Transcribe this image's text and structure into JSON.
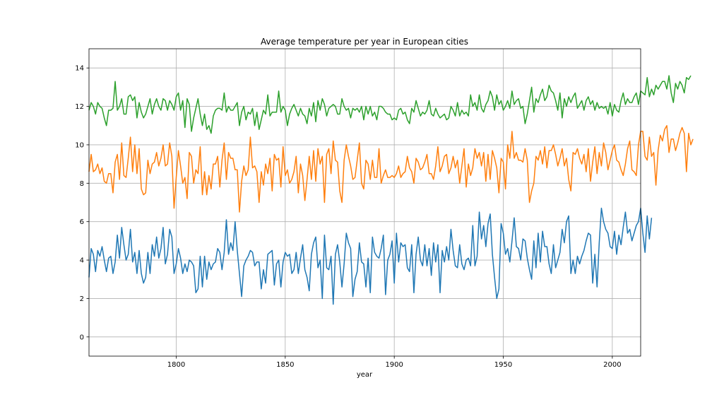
{
  "chart_data": {
    "type": "line",
    "title": "Average temperature per year in European cities",
    "xlabel": "year",
    "ylabel": "",
    "xlim": [
      1760,
      2013
    ],
    "ylim": [
      -1,
      15
    ],
    "xticks": [
      1800,
      1850,
      1900,
      1950,
      2000
    ],
    "yticks": [
      0,
      2,
      4,
      6,
      8,
      10,
      12,
      14
    ],
    "grid": true,
    "x_start": 1760,
    "series": [
      {
        "color": "#1f77b4",
        "values": [
          3.1,
          4.6,
          4.3,
          3.4,
          4.5,
          4.2,
          4.7,
          4.0,
          3.4,
          4.1,
          4.2,
          3.3,
          3.9,
          5.3,
          4.1,
          5.7,
          4.8,
          4.0,
          4.3,
          5.6,
          3.9,
          4.4,
          3.3,
          4.5,
          3.3,
          2.8,
          3.1,
          4.4,
          3.3,
          4.8,
          4.2,
          5.2,
          4.1,
          4.6,
          5.7,
          3.8,
          4.3,
          5.6,
          5.2,
          3.3,
          3.8,
          4.6,
          4.1,
          3.3,
          3.8,
          3.4,
          4.0,
          3.9,
          3.7,
          2.3,
          2.5,
          4.2,
          2.6,
          4.2,
          3.0,
          3.9,
          3.5,
          3.8,
          3.9,
          4.6,
          4.4,
          3.5,
          4.4,
          6.1,
          4.3,
          4.9,
          4.5,
          6.0,
          4.5,
          3.3,
          2.1,
          3.7,
          4.0,
          4.2,
          4.5,
          4.4,
          3.7,
          3.9,
          3.9,
          2.5,
          3.5,
          2.8,
          4.3,
          4.4,
          4.5,
          2.7,
          3.8,
          4.0,
          2.6,
          3.9,
          4.4,
          4.2,
          4.3,
          3.3,
          3.5,
          4.4,
          3.3,
          4.1,
          4.8,
          3.5,
          3.1,
          2.4,
          4.3,
          4.9,
          5.2,
          3.6,
          4.0,
          2.0,
          5.3,
          3.6,
          3.5,
          4.2,
          1.7,
          4.3,
          4.8,
          3.9,
          2.6,
          3.8,
          5.4,
          4.9,
          4.6,
          2.1,
          3.0,
          3.4,
          4.9,
          3.9,
          3.8,
          2.6,
          4.1,
          2.3,
          5.2,
          4.4,
          4.2,
          4.1,
          4.6,
          5.3,
          2.2,
          4.0,
          4.3,
          5.0,
          2.8,
          5.4,
          3.9,
          4.9,
          4.7,
          4.8,
          3.6,
          3.4,
          4.8,
          2.3,
          4.3,
          5.2,
          4.0,
          3.7,
          4.8,
          3.7,
          4.6,
          3.2,
          4.9,
          3.9,
          4.8,
          2.3,
          4.5,
          3.9,
          4.7,
          4.0,
          5.6,
          4.5,
          3.7,
          3.6,
          4.8,
          3.8,
          3.5,
          4.0,
          4.1,
          3.7,
          5.8,
          3.7,
          4.2,
          6.5,
          5.1,
          5.8,
          4.7,
          5.9,
          6.4,
          4.3,
          3.1,
          2.0,
          2.5,
          5.9,
          5.4,
          4.3,
          4.6,
          3.9,
          5.0,
          6.2,
          4.7,
          4.6,
          4.0,
          5.1,
          5.0,
          4.1,
          3.5,
          3.0,
          5.0,
          3.6,
          5.4,
          3.9,
          5.5,
          4.7,
          4.7,
          3.8,
          3.3,
          4.8,
          3.6,
          4.0,
          4.4,
          5.6,
          4.9,
          6.0,
          6.3,
          3.3,
          4.0,
          3.3,
          4.2,
          3.8,
          4.2,
          4.5,
          5.0,
          5.4,
          5.3,
          2.8,
          4.3,
          2.6,
          4.9,
          6.7,
          6.0,
          5.6,
          5.4,
          4.7,
          4.6,
          5.5,
          4.3,
          5.3,
          4.8,
          5.7,
          6.5,
          5.4,
          5.6,
          5.0,
          5.4,
          5.8,
          6.0,
          6.7,
          5.4,
          4.4,
          6.3,
          5.1,
          6.2
        ]
      },
      {
        "color": "#ff7f0e",
        "values": [
          8.6,
          9.5,
          8.6,
          8.7,
          9.0,
          8.5,
          8.8,
          8.1,
          8.0,
          8.5,
          8.5,
          7.5,
          9.1,
          9.5,
          8.2,
          10.1,
          8.4,
          8.3,
          9.3,
          10.4,
          8.6,
          10.0,
          8.5,
          9.8,
          7.7,
          7.4,
          7.5,
          9.2,
          8.5,
          9.0,
          9.1,
          9.6,
          8.9,
          9.3,
          10.0,
          8.9,
          9.0,
          10.1,
          9.4,
          6.7,
          8.3,
          9.7,
          8.9,
          8.0,
          8.3,
          7.2,
          9.6,
          9.4,
          8.0,
          8.7,
          8.5,
          9.9,
          7.4,
          8.6,
          7.4,
          8.4,
          7.7,
          9.0,
          9.0,
          9.4,
          7.8,
          9.2,
          10.1,
          8.2,
          9.6,
          9.3,
          9.3,
          8.7,
          8.7,
          6.5,
          8.1,
          8.9,
          8.4,
          8.7,
          10.4,
          8.8,
          8.9,
          8.6,
          7.0,
          8.6,
          7.9,
          9.0,
          8.5,
          9.3,
          7.6,
          9.5,
          9.2,
          9.3,
          7.8,
          9.9,
          8.4,
          8.7,
          8.0,
          8.2,
          8.6,
          9.4,
          7.5,
          9.0,
          8.4,
          7.1,
          8.2,
          9.4,
          8.2,
          9.7,
          8.1,
          9.8,
          9.0,
          9.4,
          7.0,
          9.5,
          9.8,
          8.5,
          10.2,
          9.2,
          9.1,
          7.6,
          7.0,
          9.2,
          10.0,
          9.4,
          8.9,
          8.2,
          8.3,
          9.2,
          10.1,
          8.0,
          7.7,
          9.2,
          9.0,
          8.2,
          9.2,
          8.3,
          8.3,
          9.8,
          8.0,
          8.4,
          8.7,
          8.3,
          8.3,
          8.4,
          8.3,
          8.5,
          8.9,
          8.3,
          8.5,
          8.6,
          9.4,
          8.8,
          8.6,
          8.0,
          9.3,
          9.1,
          8.7,
          8.8,
          9.1,
          9.5,
          8.5,
          8.5,
          8.2,
          8.9,
          9.9,
          8.6,
          8.9,
          9.4,
          9.5,
          8.5,
          8.8,
          9.4,
          8.8,
          9.2,
          8.0,
          8.9,
          9.8,
          7.8,
          9.0,
          8.4,
          8.8,
          9.8,
          9.3,
          9.6,
          8.9,
          9.6,
          8.1,
          9.5,
          8.2,
          9.7,
          9.3,
          8.8,
          7.5,
          9.3,
          9.1,
          7.7,
          10.0,
          9.3,
          10.7,
          9.3,
          9.6,
          9.2,
          9.2,
          9.1,
          9.8,
          9.2,
          7.0,
          7.6,
          8.0,
          9.4,
          9.2,
          9.7,
          9.0,
          9.9,
          8.8,
          9.7,
          9.7,
          10.0,
          9.5,
          8.9,
          9.3,
          9.8,
          8.9,
          9.3,
          8.2,
          7.6,
          9.6,
          9.5,
          9.8,
          9.3,
          9.0,
          9.5,
          8.6,
          9.8,
          8.1,
          9.1,
          9.9,
          8.5,
          9.6,
          8.9,
          10.1,
          9.6,
          8.7,
          9.2,
          9.7,
          10.0,
          9.2,
          9.1,
          8.7,
          8.4,
          9.0,
          9.8,
          10.2,
          8.7,
          8.6,
          8.4,
          10.0,
          10.7,
          10.7,
          9.4,
          9.2,
          10.4,
          9.4,
          9.6,
          7.9,
          9.7,
          10.5,
          10.2,
          10.8,
          11.0,
          9.6,
          10.3,
          10.3,
          9.7,
          10.1,
          10.6,
          10.9,
          10.6,
          8.6,
          10.6,
          10.0,
          10.3
        ]
      },
      {
        "color": "#2ca02c",
        "values": [
          11.8,
          12.2,
          12.0,
          11.6,
          12.2,
          12.0,
          11.9,
          11.4,
          11.0,
          11.8,
          11.8,
          11.9,
          13.3,
          11.8,
          12.0,
          12.4,
          11.6,
          11.6,
          12.5,
          12.6,
          12.3,
          12.5,
          11.4,
          12.2,
          11.7,
          11.4,
          11.6,
          12.0,
          12.4,
          11.6,
          12.1,
          12.4,
          12.0,
          11.8,
          12.4,
          12.3,
          11.8,
          12.3,
          12.1,
          11.8,
          12.5,
          12.7,
          11.8,
          12.3,
          10.9,
          12.4,
          12.1,
          10.7,
          11.4,
          11.9,
          12.4,
          11.6,
          11.0,
          11.6,
          10.8,
          11.0,
          10.6,
          11.5,
          11.8,
          11.9,
          11.9,
          11.8,
          12.7,
          11.7,
          12.0,
          11.8,
          11.8,
          12.0,
          12.2,
          11.0,
          11.7,
          12.0,
          11.3,
          11.7,
          11.6,
          11.9,
          11.0,
          11.7,
          10.8,
          11.3,
          11.8,
          11.6,
          12.6,
          11.5,
          11.7,
          11.7,
          11.7,
          12.8,
          11.7,
          12.0,
          11.8,
          11.0,
          11.6,
          11.9,
          12.1,
          11.8,
          11.5,
          11.9,
          11.6,
          11.5,
          11.1,
          11.9,
          11.5,
          12.2,
          11.2,
          12.3,
          11.8,
          12.4,
          12.1,
          11.5,
          11.9,
          12.0,
          12.1,
          12.0,
          11.6,
          11.6,
          12.4,
          12.0,
          11.8,
          11.9,
          11.4,
          11.9,
          11.8,
          11.9,
          11.7,
          12.0,
          11.3,
          12.0,
          11.6,
          12.0,
          11.5,
          11.7,
          11.3,
          12.0,
          12.0,
          11.9,
          11.7,
          11.6,
          11.6,
          11.3,
          11.4,
          11.3,
          11.8,
          11.9,
          11.6,
          11.7,
          11.3,
          11.1,
          11.9,
          11.7,
          12.3,
          11.9,
          11.5,
          11.7,
          11.6,
          11.8,
          12.3,
          11.6,
          11.5,
          11.9,
          11.6,
          11.4,
          11.5,
          11.6,
          11.3,
          11.4,
          12.0,
          11.8,
          11.5,
          12.2,
          11.5,
          11.8,
          11.6,
          11.7,
          11.5,
          12.6,
          12.0,
          12.2,
          11.8,
          12.6,
          11.9,
          11.7,
          12.1,
          12.3,
          12.8,
          12.5,
          11.8,
          12.6,
          12.1,
          12.3,
          11.8,
          12.0,
          12.3,
          11.9,
          12.8,
          12.1,
          12.3,
          12.4,
          11.9,
          12.0,
          11.1,
          11.6,
          12.3,
          13.0,
          11.7,
          12.4,
          12.2,
          12.6,
          12.9,
          12.3,
          12.5,
          13.1,
          12.8,
          12.7,
          12.3,
          11.8,
          12.7,
          11.4,
          12.4,
          12.0,
          12.5,
          12.2,
          12.5,
          12.7,
          11.9,
          12.1,
          12.3,
          11.8,
          12.3,
          12.5,
          12.1,
          12.3,
          11.8,
          12.2,
          11.9,
          12.0,
          11.9,
          12.0,
          11.6,
          12.2,
          11.5,
          12.1,
          11.8,
          11.7,
          12.3,
          12.7,
          12.1,
          12.4,
          12.2,
          12.2,
          12.5,
          12.7,
          12.1,
          12.8,
          12.7,
          12.6,
          13.5,
          12.5,
          12.9,
          12.6,
          13.1,
          12.9,
          13.1,
          13.3,
          13.3,
          12.9,
          13.6,
          12.7,
          12.2,
          13.2,
          12.9,
          13.3,
          13.1,
          12.7,
          13.5,
          13.4,
          13.6
        ]
      }
    ]
  }
}
